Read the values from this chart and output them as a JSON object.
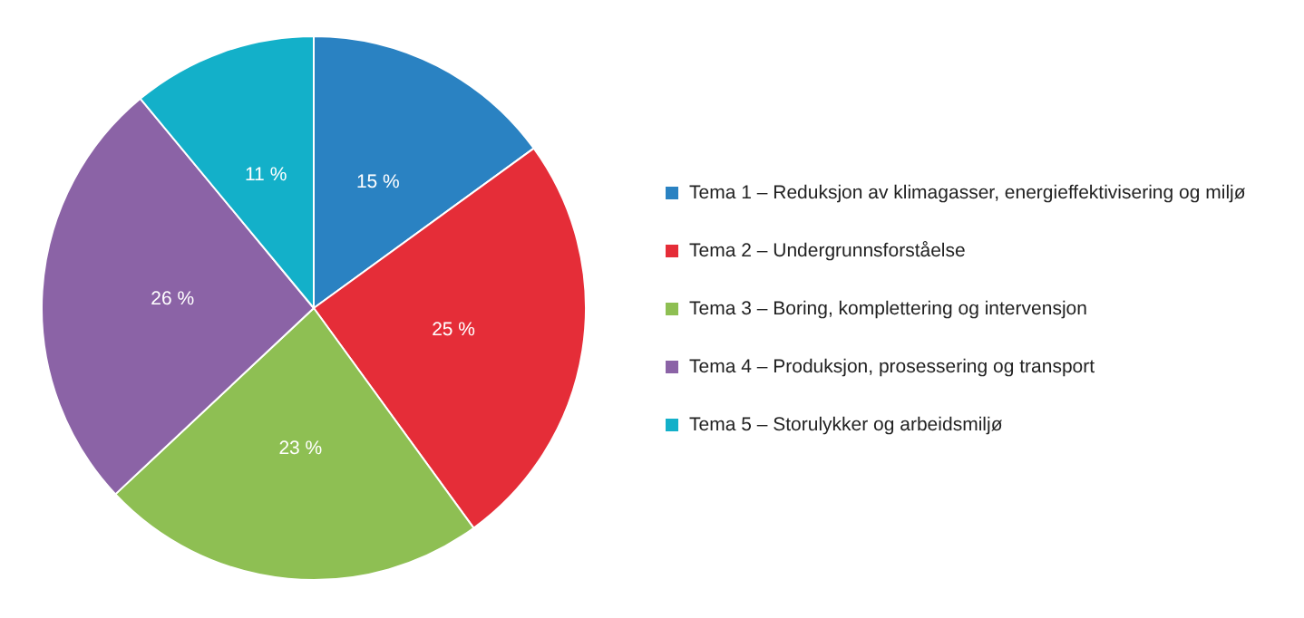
{
  "chart_data": {
    "type": "pie",
    "categories": [
      "Tema 1 – Reduksjon av klimagasser, energieffektivisering og miljø",
      "Tema 2 – Undergrunnsforståelse",
      "Tema 3 – Boring, komplettering og intervensjon",
      "Tema 4 – Produksjon, prosessering og transport",
      "Tema 5 – Storulykker og arbeidsmiljø"
    ],
    "values": [
      15,
      25,
      23,
      26,
      11
    ],
    "colors": [
      "#2a82c2",
      "#e52d38",
      "#8ebf53",
      "#8b63a6",
      "#13b0c9"
    ],
    "value_labels": [
      "15 %",
      "25 %",
      "23 %",
      "26 %",
      "11 %"
    ],
    "legend": "right"
  }
}
